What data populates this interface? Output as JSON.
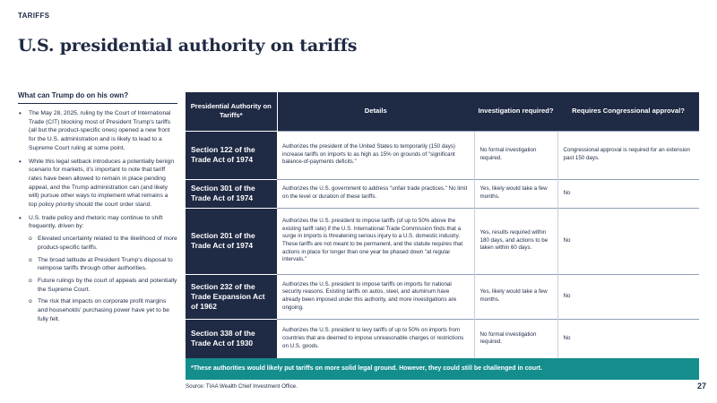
{
  "header": {
    "eyebrow": "TARIFFS",
    "title": "U.S. presidential authority on tariffs"
  },
  "left_panel": {
    "heading": "What can Trump do on his own?",
    "bullets": [
      "The May 28, 2025, ruling by the Court of International Trade (CIT) blocking most of President Trump's tariffs (all but the product-specific ones) opened a new front for the U.S. administration and is likely to lead to a Supreme Court ruling at some point.",
      "While this legal setback introduces a potentially benign scenario for markets, it's important to note that tariff rates have been allowed to remain in place pending appeal, and the Trump administration can (and likely will) pursue other ways to implement what remains a top policy priority should the court order stand.",
      "U.S. trade policy and rhetoric may continue to shift frequently, driven by:"
    ],
    "sub_bullets": [
      "Elevated uncertainty related to the likelihood of more product-specific tariffs.",
      "The broad latitude at President Trump's disposal to reimpose tariffs through other authorities.",
      "Future rulings by the court of appeals and potentially the Supreme Court.",
      "The risk that impacts on corporate profit margins and households' purchasing power have yet to be fully felt."
    ]
  },
  "table": {
    "headers": [
      "Presidential Authority on Tariffs*",
      "Details",
      "Investigation required?",
      "Requires Congressional approval?"
    ],
    "rows": [
      {
        "authority": "Section 122 of the Trade Act of 1974",
        "details": "Authorizes the president of the United States to temporarily (150 days) increase tariffs on imports to as high as 15% on grounds of \"significant balance-of-payments deficits.\"",
        "investigation": "No formal investigation required.",
        "congress": "Congressional approval is required for an extension past 150 days."
      },
      {
        "authority": "Section 301 of the Trade Act of 1974",
        "details": "Authorizes the U.S. government to address \"unfair trade practices.\" No limit on the level or duration of these tariffs.",
        "investigation": "Yes, likely would take a few months.",
        "congress": "No"
      },
      {
        "authority": "Section 201 of the Trade Act of 1974",
        "details": "Authorizes the U.S. president to impose tariffs (of up to 50% above the existing tariff rate) if the U.S. International Trade Commission finds that a surge in imports is threatening serious injury to a U.S. domestic industry. These tariffs are not meant to be permanent, and the statute requires that actions in place for longer than one year be phased down \"at regular intervals.\"",
        "investigation": "Yes, results required within 180 days, and actions to be taken within 60 days.",
        "congress": "No"
      },
      {
        "authority": "Section 232 of the Trade Expansion Act of 1962",
        "details": "Authorizes the U.S. president to impose tariffs on imports for national security reasons. Existing tariffs on autos, steel, and aluminum have already been imposed under this authority, and more investigations are ongoing.",
        "investigation": "Yes, likely would take a few months.",
        "congress": "No"
      },
      {
        "authority": "Section 338 of the Trade Act of 1930",
        "details": "Authorizes the U.S. president to levy tariffs of up to 50% on imports from countries that are deemed to impose unreasonable charges or restrictions on U.S. goods.",
        "investigation": "No formal investigation required.",
        "congress": "No"
      }
    ],
    "footnote": "*These authorities would likely put tariffs on more solid legal ground. However, they could still be challenged in court."
  },
  "footer": {
    "source": "Source: TIAA Wealth Chief Investment Office.",
    "page_number": "27"
  },
  "colors": {
    "navy": "#1f2a44",
    "teal": "#148d8d"
  }
}
